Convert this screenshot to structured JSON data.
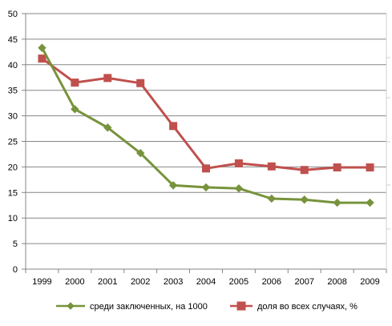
{
  "chart_data": {
    "type": "line",
    "title": "",
    "xlabel": "",
    "ylabel": "",
    "categories": [
      "1999",
      "2000",
      "2001",
      "2002",
      "2003",
      "2004",
      "2005",
      "2006",
      "2007",
      "2008",
      "2009"
    ],
    "ylim": [
      0,
      50
    ],
    "yticks": [
      "0",
      "5",
      "10",
      "15",
      "20",
      "25",
      "30",
      "35",
      "40",
      "45",
      "50"
    ],
    "grid": true,
    "legend_position": "bottom",
    "series": [
      {
        "name": "среди заключенных, на 1000",
        "color": "#77933C",
        "marker": "diamond",
        "values": [
          43.3,
          31.3,
          27.7,
          22.7,
          16.4,
          16.0,
          15.8,
          13.8,
          13.6,
          13.0,
          13.0
        ]
      },
      {
        "name": "доля во всех случаях, %",
        "color": "#C0504D",
        "marker": "square",
        "values": [
          41.2,
          36.5,
          37.4,
          36.4,
          28.0,
          19.7,
          20.7,
          20.1,
          19.4,
          19.9,
          19.9
        ]
      }
    ]
  }
}
